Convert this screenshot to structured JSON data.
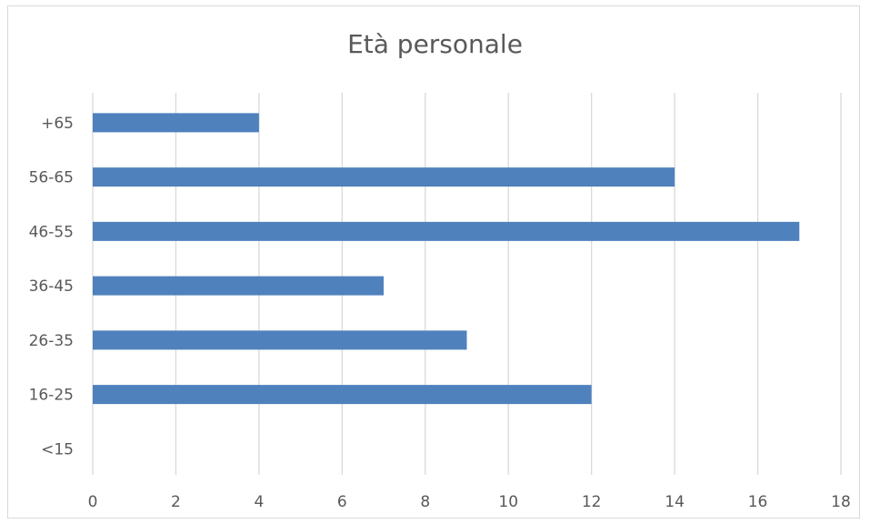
{
  "chart_data": {
    "type": "bar",
    "orientation": "horizontal",
    "title": "Età personale",
    "categories": [
      "<15",
      "16-25",
      "26-35",
      "36-45",
      "46-55",
      "56-65",
      "+65"
    ],
    "values": [
      0,
      12,
      9,
      7,
      17,
      14,
      4
    ],
    "xlim": [
      0,
      18
    ],
    "xticks": [
      "0",
      "2",
      "4",
      "6",
      "8",
      "10",
      "12",
      "14",
      "16",
      "18"
    ],
    "grid": "vertical",
    "legend": "none",
    "bar_color": "#4f81bd",
    "grid_color": "#d9d9d9",
    "text_color": "#595959"
  }
}
